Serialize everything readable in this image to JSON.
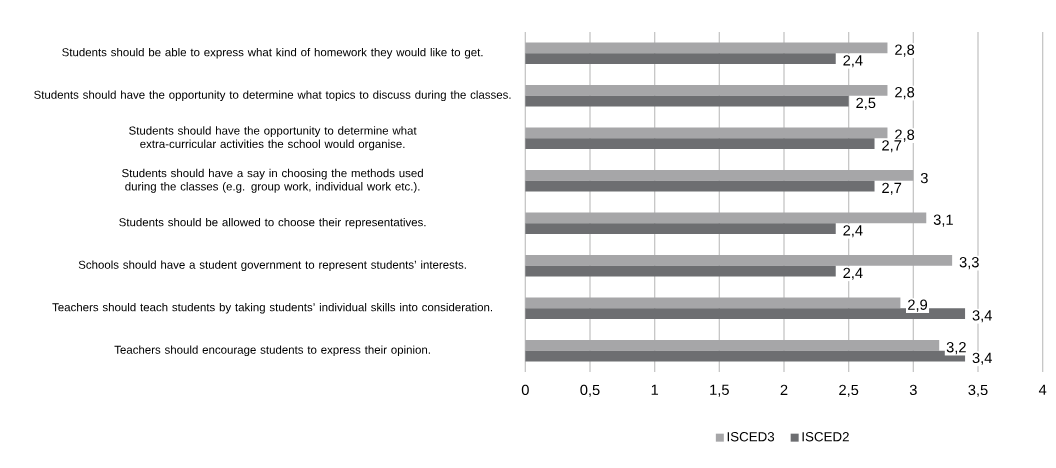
{
  "chart_data": {
    "type": "bar",
    "orientation": "horizontal",
    "categories": [
      "Students should be able to express what kind of homework they would like to get.",
      "Students should have the opportunity to determine what topics to discuss during the classes.",
      "Students should have the opportunity to determine what extra-curricular activities the school would organise.",
      "Students should have a say in choosing the methods used during the classes (e.g. group work, individual work etc.).",
      "Students should be allowed to choose their representatives.",
      "Schools should have a student government to represent students’ interests.",
      "Teachers should teach students by taking students’ individual skills into consideration.",
      "Teachers should encourage students to express their opinion."
    ],
    "series": [
      {
        "name": "ISCED3",
        "color": "#a6a6a8",
        "values": [
          2.8,
          2.8,
          2.8,
          3,
          3.1,
          3.3,
          2.9,
          3.2
        ],
        "value_labels": [
          "2,8",
          "2,8",
          "2,8",
          "3",
          "3,1",
          "3,3",
          "2,9",
          "3,2"
        ]
      },
      {
        "name": "ISCED2",
        "color": "#6d6e71",
        "values": [
          2.4,
          2.5,
          2.7,
          2.7,
          2.4,
          2.4,
          3.4,
          3.4
        ],
        "value_labels": [
          "2,4",
          "2,5",
          "2,7",
          "2,7",
          "2,4",
          "2,4",
          "3,4",
          "3,4"
        ]
      }
    ],
    "xlim": [
      0,
      4
    ],
    "xticks": [
      0,
      {
        "value": 0.5,
        "label": "0,5"
      },
      1,
      {
        "value": 1.5,
        "label": "1,5"
      },
      2,
      {
        "value": 2.5,
        "label": "2,5"
      },
      3,
      {
        "value": 3.5,
        "label": "3,5"
      },
      4
    ],
    "grid": "x",
    "legend": "bottom"
  }
}
